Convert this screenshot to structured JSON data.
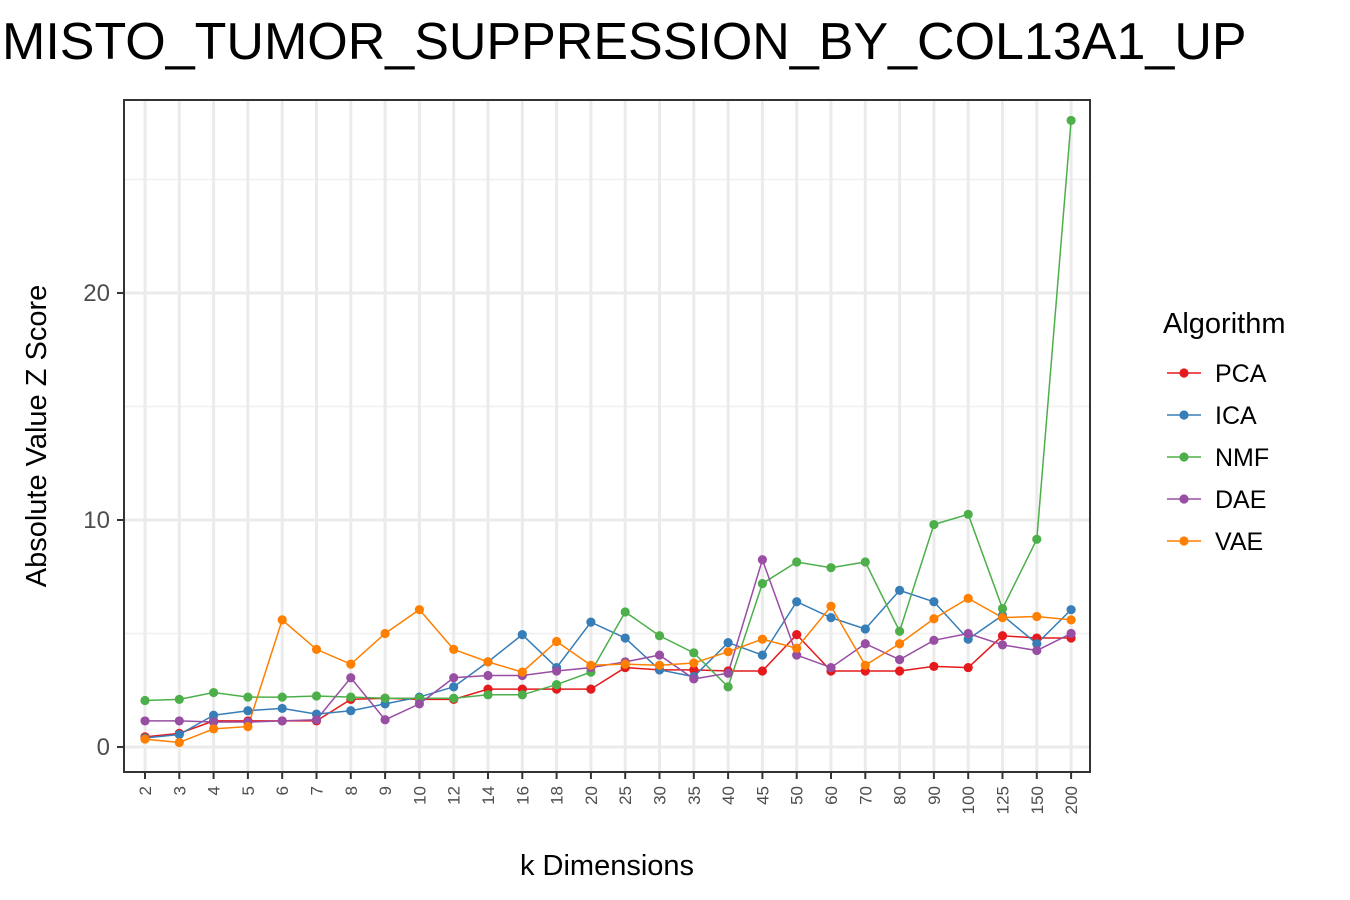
{
  "chart_data": {
    "type": "line",
    "title": "MISTO_TUMOR_SUPPRESSION_BY_COL13A1_UP",
    "xlabel": "k Dimensions",
    "ylabel": "Absolute Value Z Score",
    "categories": [
      "2",
      "3",
      "4",
      "5",
      "6",
      "7",
      "8",
      "9",
      "10",
      "12",
      "14",
      "16",
      "18",
      "20",
      "25",
      "30",
      "35",
      "40",
      "45",
      "50",
      "60",
      "70",
      "80",
      "90",
      "100",
      "125",
      "150",
      "200"
    ],
    "ylim": [
      -1.1,
      28.5
    ],
    "yticks": [
      0,
      10,
      20
    ],
    "grid": true,
    "legend": {
      "title": "Algorithm",
      "placement": "right"
    },
    "series": [
      {
        "name": "PCA",
        "color": "#e41a1c",
        "values": [
          0.45,
          0.6,
          1.15,
          1.15,
          1.15,
          1.15,
          2.1,
          2.15,
          2.1,
          2.1,
          2.55,
          2.55,
          2.55,
          2.55,
          3.5,
          3.4,
          3.4,
          3.35,
          3.35,
          4.95,
          3.35,
          3.35,
          3.35,
          3.55,
          3.5,
          4.9,
          4.8,
          4.8
        ]
      },
      {
        "name": "ICA",
        "color": "#377eb8",
        "values": [
          0.4,
          0.55,
          1.4,
          1.6,
          1.7,
          1.45,
          1.6,
          1.9,
          2.2,
          2.65,
          3.75,
          4.95,
          3.5,
          5.5,
          4.8,
          3.4,
          3.1,
          4.6,
          4.05,
          6.4,
          5.7,
          5.2,
          6.9,
          6.4,
          4.75,
          5.8,
          4.55,
          6.05
        ]
      },
      {
        "name": "NMF",
        "color": "#4daf4a",
        "values": [
          2.05,
          2.1,
          2.4,
          2.2,
          2.2,
          2.25,
          2.2,
          2.15,
          2.15,
          2.15,
          2.3,
          2.3,
          2.75,
          3.3,
          5.95,
          4.9,
          4.15,
          2.65,
          7.2,
          8.15,
          7.9,
          8.15,
          5.1,
          9.8,
          10.25,
          6.1,
          9.15,
          27.6
        ]
      },
      {
        "name": "DAE",
        "color": "#984ea3",
        "values": [
          1.15,
          1.15,
          1.1,
          1.1,
          1.15,
          1.2,
          3.05,
          1.2,
          1.9,
          3.05,
          3.15,
          3.15,
          3.35,
          3.5,
          3.75,
          4.05,
          3.0,
          3.25,
          8.25,
          4.05,
          3.5,
          4.55,
          3.85,
          4.7,
          5.0,
          4.5,
          4.25,
          5.0
        ]
      },
      {
        "name": "VAE",
        "color": "#ff7f00",
        "values": [
          0.35,
          0.2,
          0.8,
          0.9,
          5.6,
          4.3,
          3.65,
          5.0,
          6.05,
          4.3,
          3.75,
          3.3,
          4.65,
          3.6,
          3.65,
          3.6,
          3.7,
          4.2,
          4.75,
          4.35,
          6.2,
          3.6,
          4.55,
          5.65,
          6.55,
          5.7,
          5.75,
          5.6
        ]
      }
    ]
  }
}
